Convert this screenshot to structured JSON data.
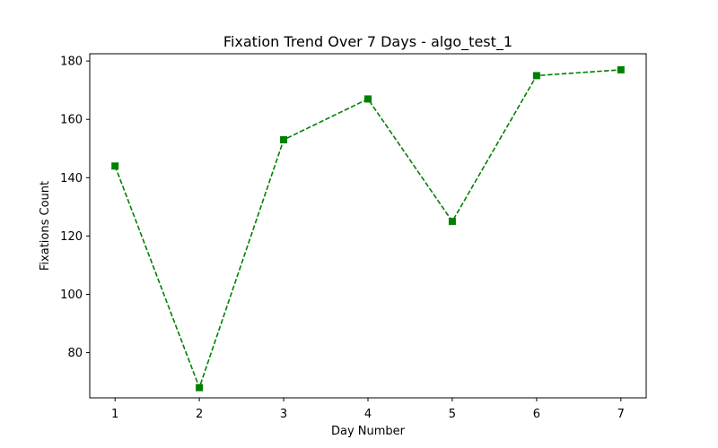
{
  "chart_data": {
    "type": "line",
    "title": "Fixation Trend Over 7 Days - algo_test_1",
    "xlabel": "Day Number",
    "ylabel": "Fixations Count",
    "x": [
      1,
      2,
      3,
      4,
      5,
      6,
      7
    ],
    "x_ticks": [
      1,
      2,
      3,
      4,
      5,
      6,
      7
    ],
    "y_ticks": [
      80,
      100,
      120,
      140,
      160,
      180
    ],
    "xlim": [
      0.7,
      7.3
    ],
    "ylim": [
      64.5,
      182.5
    ],
    "grid": false,
    "series": [
      {
        "values": [
          144,
          68,
          153,
          167,
          125,
          175,
          177
        ],
        "color": "#008000",
        "line_style": "dashed",
        "marker": "square"
      }
    ]
  }
}
